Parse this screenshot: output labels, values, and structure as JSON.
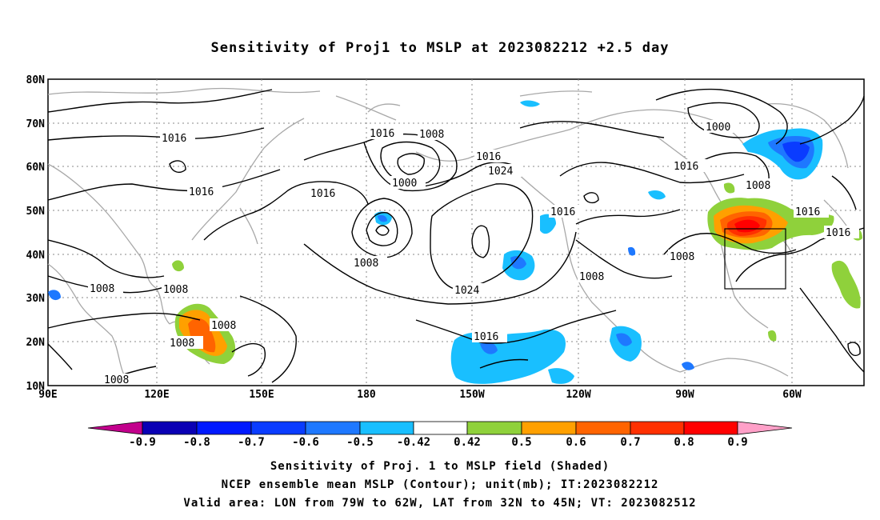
{
  "title": "Sensitivity of Proj1 to MSLP at 2023082212 +2.5 day",
  "lat_labels": [
    "80N",
    "70N",
    "60N",
    "50N",
    "40N",
    "30N",
    "20N",
    "10N"
  ],
  "lon_labels": [
    "90E",
    "120E",
    "150E",
    "180",
    "150W",
    "120W",
    "90W",
    "60W"
  ],
  "contour_labels": [
    "1016",
    "1008",
    "1016",
    "1016",
    "1024",
    "1000",
    "1016",
    "1000",
    "1016",
    "1016",
    "1008",
    "1016",
    "1016",
    "1008",
    "1008",
    "1024",
    "1008",
    "1008",
    "1008",
    "1016",
    "1008",
    "1008"
  ],
  "colorbar": {
    "labels": [
      "-0.9",
      "-0.8",
      "-0.7",
      "-0.6",
      "-0.5",
      "-0.42",
      "0.42",
      "0.5",
      "0.6",
      "0.7",
      "0.8",
      "0.9"
    ],
    "colors": [
      "#c2008c",
      "#0a00b4",
      "#0019ff",
      "#0a3cff",
      "#1e78ff",
      "#19bfff",
      "#ffffff",
      "#8fd13b",
      "#ffa000",
      "#ff6400",
      "#ff3000",
      "#ff0000",
      "#ffa0c8"
    ]
  },
  "captions": {
    "line1": "Sensitivity of Proj. 1 to MSLP field (Shaded)",
    "line2": "NCEP ensemble mean MSLP (Contour); unit(mb); IT:2023082212",
    "line3": "Valid area: LON from 79W to 62W, LAT from 32N to 45N; VT: 2023082512"
  }
}
